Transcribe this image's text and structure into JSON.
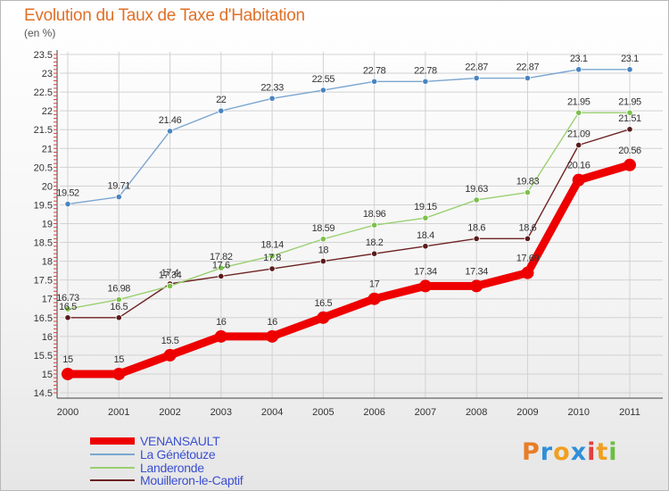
{
  "title": "Evolution du Taux de Taxe d'Habitation",
  "subtitle": "(en %)",
  "logo": {
    "letters": [
      "P",
      "r",
      "o",
      "x",
      "i",
      "t",
      "i"
    ],
    "colors": [
      "#e87d25",
      "#2f8fd8",
      "#f0a020",
      "#2f8fd8",
      "#e04040",
      "#f0a020",
      "#6cbf40"
    ]
  },
  "chart_data": {
    "type": "line",
    "x": [
      "2000",
      "2001",
      "2002",
      "2003",
      "2004",
      "2005",
      "2006",
      "2007",
      "2008",
      "2009",
      "2010",
      "2011"
    ],
    "ylim": [
      14.5,
      23.5
    ],
    "yticks": [
      "14.5",
      "15",
      "15.5",
      "16",
      "16.5",
      "17",
      "17.5",
      "18",
      "18.5",
      "19",
      "19.5",
      "20",
      "20.5",
      "21",
      "21.5",
      "22",
      "22.5",
      "23",
      "23.5"
    ],
    "grid": true,
    "legend_position": "bottom-left",
    "series": [
      {
        "name": "VENANSAULT",
        "color": "#ee0000",
        "values": [
          15,
          15,
          15.5,
          16,
          16,
          16.5,
          17,
          17.34,
          17.34,
          17.69,
          20.16,
          20.56
        ],
        "labels": [
          "15",
          "15",
          "15.5",
          "16",
          "16",
          "16.5",
          "17",
          "17.34",
          "17.34",
          "17.69",
          "20.16",
          "20.56"
        ]
      },
      {
        "name": "La Génétouze",
        "color": "#7aa6d0",
        "values": [
          19.52,
          19.71,
          21.46,
          22,
          22.33,
          22.55,
          22.78,
          22.78,
          22.87,
          22.87,
          23.1,
          23.1
        ],
        "labels": [
          "19.52",
          "19.71",
          "21.46",
          "22",
          "22.33",
          "22.55",
          "22.78",
          "22.78",
          "22.87",
          "22.87",
          "23.1",
          "23.1"
        ]
      },
      {
        "name": "Landeronde",
        "color": "#9ad070",
        "values": [
          16.73,
          16.98,
          17.34,
          17.82,
          18.14,
          18.59,
          18.96,
          19.15,
          19.63,
          19.83,
          21.95,
          21.95
        ],
        "labels": [
          "16.73",
          "16.98",
          "17.34",
          "17.82",
          "18.14",
          "18.59",
          "18.96",
          "19.15",
          "19.63",
          "19.83",
          "21.95",
          "21.95"
        ]
      },
      {
        "name": "Mouilleron-le-Captif",
        "color": "#6e2222",
        "values": [
          16.5,
          16.5,
          17.4,
          17.6,
          17.8,
          18,
          18.2,
          18.4,
          18.6,
          18.6,
          21.09,
          21.51
        ],
        "labels": [
          "16.5",
          "16.5",
          "17.4",
          "17.6",
          "17.8",
          "18",
          "18.2",
          "18.4",
          "18.6",
          "18.6",
          "21.09",
          "21.51"
        ]
      }
    ]
  }
}
